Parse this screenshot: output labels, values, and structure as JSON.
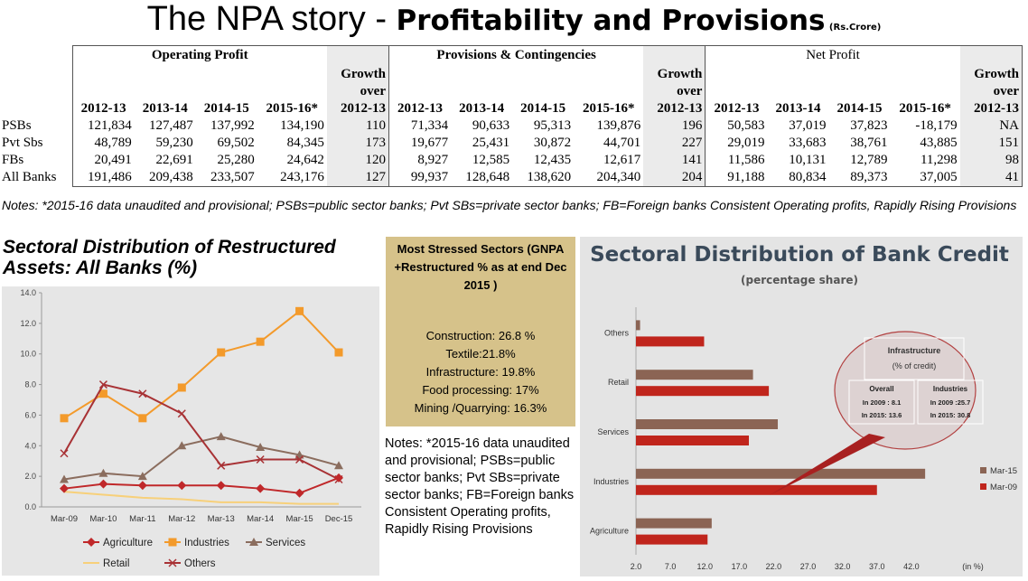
{
  "title": {
    "main": "The NPA story - ",
    "bold": "Profitability and Provisions",
    "unit": "(Rs.Crore)"
  },
  "table": {
    "groups": [
      "Operating Profit",
      "Provisions & Contingencies",
      "Net Profit"
    ],
    "growth_label_1": "Growth",
    "growth_label_2": "over",
    "years": [
      "2012-13",
      "2013-14",
      "2014-15",
      "2015-16*",
      "2012-13"
    ],
    "rows": [
      {
        "label": "PSBs",
        "op": [
          "121,834",
          "127,487",
          "137,992",
          "134,190",
          "110"
        ],
        "pc": [
          "71,334",
          "90,633",
          "95,313",
          "139,876",
          "196"
        ],
        "np": [
          "50,583",
          "37,019",
          "37,823",
          "-18,179",
          "NA"
        ]
      },
      {
        "label": "Pvt Sbs",
        "op": [
          "48,789",
          "59,230",
          "69,502",
          "84,345",
          "173"
        ],
        "pc": [
          "19,677",
          "25,431",
          "30,872",
          "44,701",
          "227"
        ],
        "np": [
          "29,019",
          "33,683",
          "38,761",
          "43,885",
          "151"
        ]
      },
      {
        "label": "FBs",
        "op": [
          "20,491",
          "22,691",
          "25,280",
          "24,642",
          "120"
        ],
        "pc": [
          "8,927",
          "12,585",
          "12,435",
          "12,617",
          "141"
        ],
        "np": [
          "11,586",
          "10,131",
          "12,789",
          "11,298",
          "98"
        ]
      },
      {
        "label": "All Banks",
        "op": [
          "191,486",
          "209,438",
          "233,507",
          "243,176",
          "127"
        ],
        "pc": [
          "99,937",
          "128,648",
          "138,620",
          "204,340",
          "204"
        ],
        "np": [
          "91,188",
          "80,834",
          "89,373",
          "37,005",
          "41"
        ]
      }
    ]
  },
  "notes_top": "Notes: *2015-16 data unaudited and provisional; PSBs=public sector banks; Pvt SBs=private sector banks; FB=Foreign banks Consistent Operating profits, Rapidly Rising Provisions",
  "restructured": {
    "title": "Sectoral Distribution of Restructured Assets: All Banks (%)"
  },
  "stressed": {
    "title": "Most Stressed Sectors (GNPA +Restructured % as at end Dec 2015 )",
    "items": [
      "Construction: 26.8 %",
      "Textile:21.8%",
      "Infrastructure: 19.8%",
      "Food processing: 17%",
      "Mining /Quarrying: 16.3%"
    ]
  },
  "notes_mid": "Notes: *2015-16 data unaudited and provisional; PSBs=public sector banks; Pvt SBs=private sector banks; FB=Foreign banks Consistent Operating profits, Rapidly Rising Provisions",
  "chart_data": [
    {
      "type": "line",
      "title": "Sectoral Distribution of Restructured Assets: All Banks (%)",
      "x": [
        "Mar-09",
        "Mar-10",
        "Mar-11",
        "Mar-12",
        "Mar-13",
        "Mar-14",
        "Mar-15",
        "Dec-15"
      ],
      "ylim": [
        0,
        14
      ],
      "yticks": [
        "0.0",
        "2.0",
        "4.0",
        "6.0",
        "8.0",
        "10.0",
        "12.0",
        "14.0"
      ],
      "grid": false,
      "legend": "bottom",
      "series": [
        {
          "name": "Agriculture",
          "color": "#c0282a",
          "marker": "diamond",
          "values": [
            1.2,
            1.5,
            1.4,
            1.4,
            1.4,
            1.2,
            0.9,
            1.9
          ]
        },
        {
          "name": "Industries",
          "color": "#f39a2b",
          "marker": "square",
          "values": [
            5.8,
            7.4,
            5.8,
            7.8,
            10.1,
            10.8,
            12.8,
            10.1
          ]
        },
        {
          "name": "Services",
          "color": "#8b6d5e",
          "marker": "triangle",
          "values": [
            1.8,
            2.2,
            2.0,
            4.0,
            4.6,
            3.9,
            3.4,
            2.7
          ]
        },
        {
          "name": "Retail",
          "color": "#f7d07a",
          "marker": "none",
          "values": [
            1.0,
            0.8,
            0.6,
            0.5,
            0.3,
            0.3,
            0.2,
            0.2
          ]
        },
        {
          "name": "Others",
          "color": "#a83235",
          "marker": "star",
          "values": [
            3.5,
            8.0,
            7.4,
            6.1,
            2.7,
            3.1,
            3.1,
            1.8
          ]
        }
      ]
    },
    {
      "type": "bar",
      "orientation": "horizontal",
      "title": "Sectoral Distribution of Bank Credit",
      "subtitle": "(percentage share)",
      "categories": [
        "Others",
        "Retail",
        "Services",
        "Industries",
        "Agriculture"
      ],
      "xlim": [
        2.0,
        47.0
      ],
      "xticks": [
        "2.0",
        "7.0",
        "12.0",
        "17.0",
        "22.0",
        "27.0",
        "32.0",
        "37.0",
        "42.0"
      ],
      "xlabel": "(in %)",
      "legend": "right",
      "series": [
        {
          "name": "Mar-15",
          "color": "#8b6454",
          "values": [
            2.6,
            19.0,
            22.6,
            44.0,
            13.0
          ]
        },
        {
          "name": "Mar-09",
          "color": "#c0251c",
          "values": [
            11.9,
            21.3,
            18.4,
            37.0,
            12.4
          ]
        }
      ],
      "annotation": {
        "title": "Infrastructure",
        "subtitle": "(% of credit)",
        "overall": {
          "label": "Overall",
          "line1": "In 2009 : 8.1",
          "line2": "In 2015: 13.6"
        },
        "industries": {
          "label": "Industries",
          "line1": "In 2009 :25.7",
          "line2": "In 2015: 30.8"
        }
      }
    }
  ]
}
